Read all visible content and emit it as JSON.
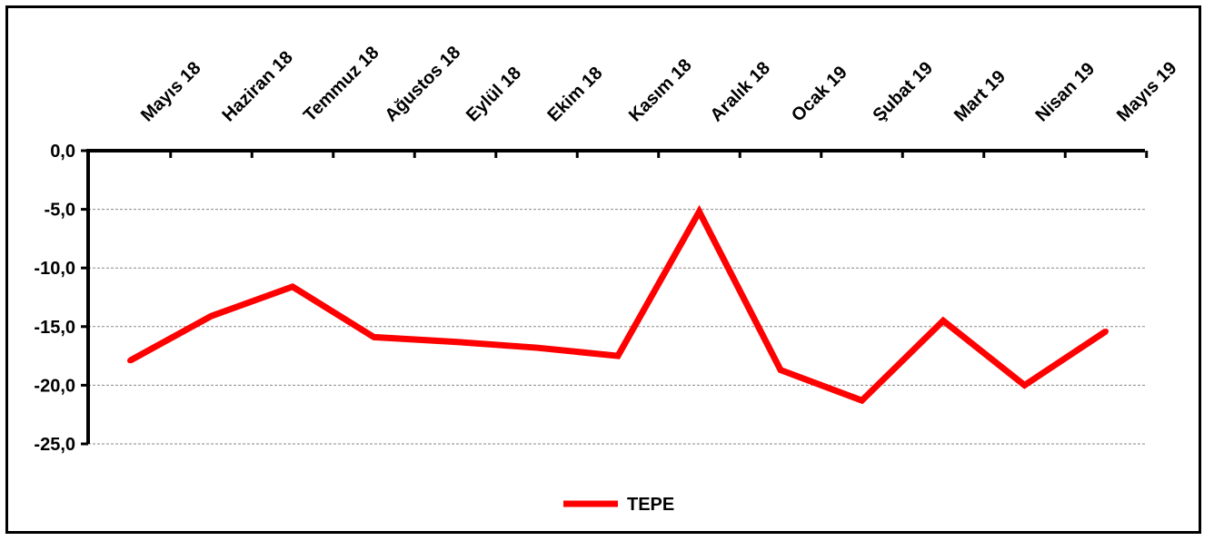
{
  "chart_data": {
    "type": "line",
    "title": "",
    "xlabel": "",
    "ylabel": "",
    "categories": [
      "Mayıs 18",
      "Haziran 18",
      "Temmuz 18",
      "Ağustos 18",
      "Eylül 18",
      "Ekim 18",
      "Kasım 18",
      "Aralık 18",
      "Ocak 19",
      "Şubat 19",
      "Mart 19",
      "Nisan 19",
      "Mayıs 19"
    ],
    "series": [
      {
        "name": "TEPE",
        "color": "#ff0000",
        "values": [
          -17.9,
          -14.1,
          -11.6,
          -15.9,
          -16.3,
          -16.8,
          -17.5,
          -5.2,
          -18.7,
          -21.3,
          -14.5,
          -20.0,
          -15.4
        ]
      }
    ],
    "ylim": [
      -25,
      0
    ],
    "yticks": [
      0,
      -5,
      -10,
      -15,
      -20,
      -25
    ],
    "ytick_labels": [
      "0,0",
      "-5,0",
      "-10,0",
      "-15,0",
      "-20,0",
      "-25,0"
    ],
    "x_axis_position": "top",
    "x_labels_rotation": "diagonal",
    "grid": "horizontal dashed",
    "legend": {
      "position": "bottom-center",
      "entries": [
        "TEPE"
      ]
    }
  }
}
